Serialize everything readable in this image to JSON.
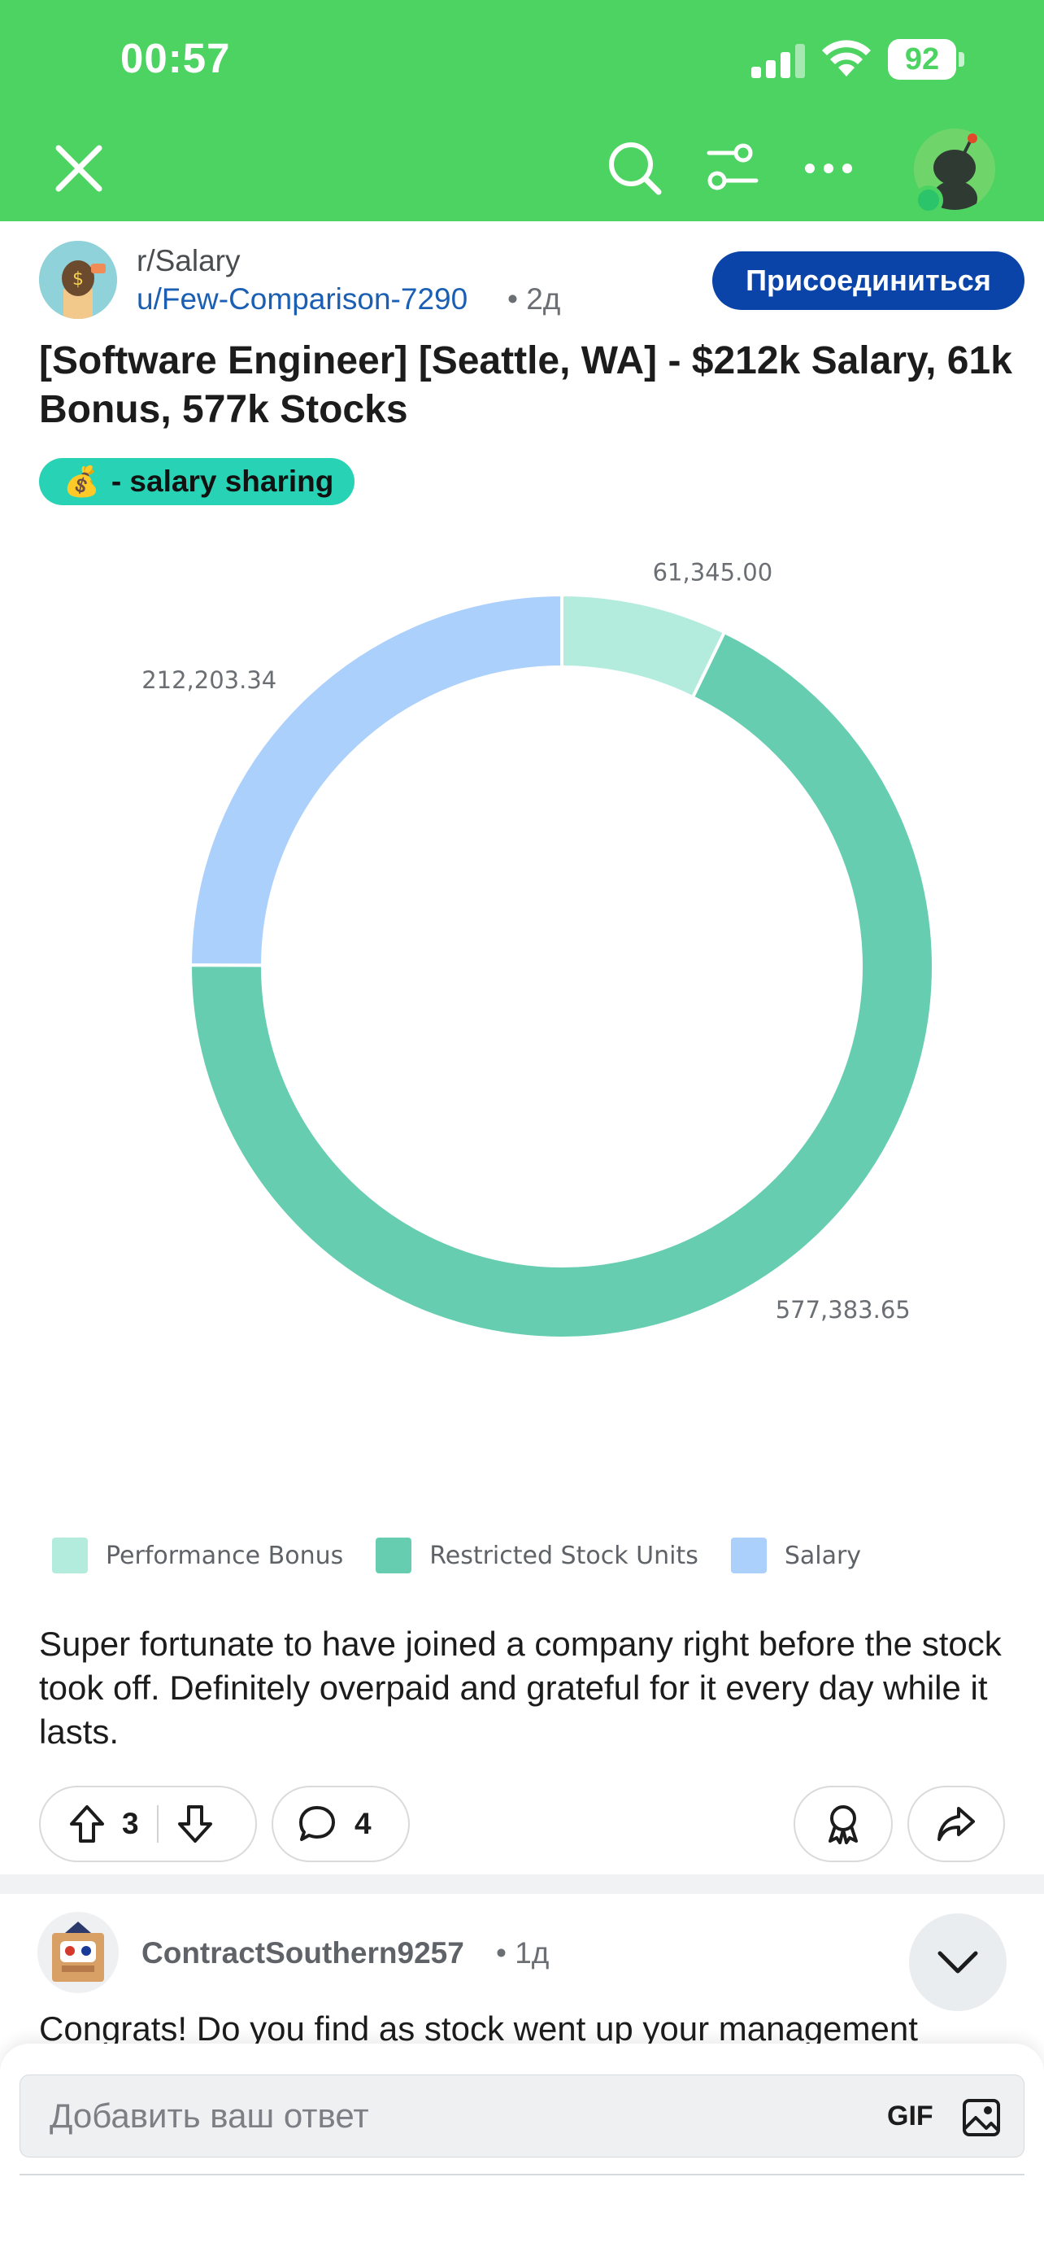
{
  "status_bar": {
    "time": "00:57",
    "battery": "92"
  },
  "nav": {
    "close_icon": "close-icon",
    "search_icon": "search-icon",
    "filter_icon": "filter-icon",
    "more_icon": "more-icon",
    "avatar_icon": "snoo-avatar"
  },
  "post": {
    "subreddit": "r/Salary",
    "author": "u/Few-Comparison-7290",
    "age": "• 2д",
    "join_label": "Присоединиться",
    "title": "[Software Engineer] [Seattle, WA] - $212k Salary, 61k Bonus, 577k Stocks",
    "flair_emoji": "💰",
    "flair_text": "- salary sharing",
    "body": "Super fortunate to have joined a company right before the stock took off. Definitely overpaid and grateful for it every day while it lasts.",
    "upvotes": "3",
    "comments": "4"
  },
  "chart_data": {
    "type": "pie",
    "donut": true,
    "categories": [
      "Performance Bonus",
      "Restricted Stock Units",
      "Salary"
    ],
    "values": [
      61345.0,
      577383.65,
      212203.34
    ],
    "labels": [
      "61,345.00",
      "577,383.65",
      "212,203.34"
    ],
    "colors": [
      "#b3ecdd",
      "#66cdb0",
      "#acd0fc"
    ],
    "legend_position": "bottom"
  },
  "comment": {
    "author": "ContractSouthern9257",
    "age": "• 1д",
    "text": "Congrats! Do you find as stock went up your management"
  },
  "reply": {
    "placeholder": "Добавить ваш ответ",
    "gif_label": "GIF"
  }
}
